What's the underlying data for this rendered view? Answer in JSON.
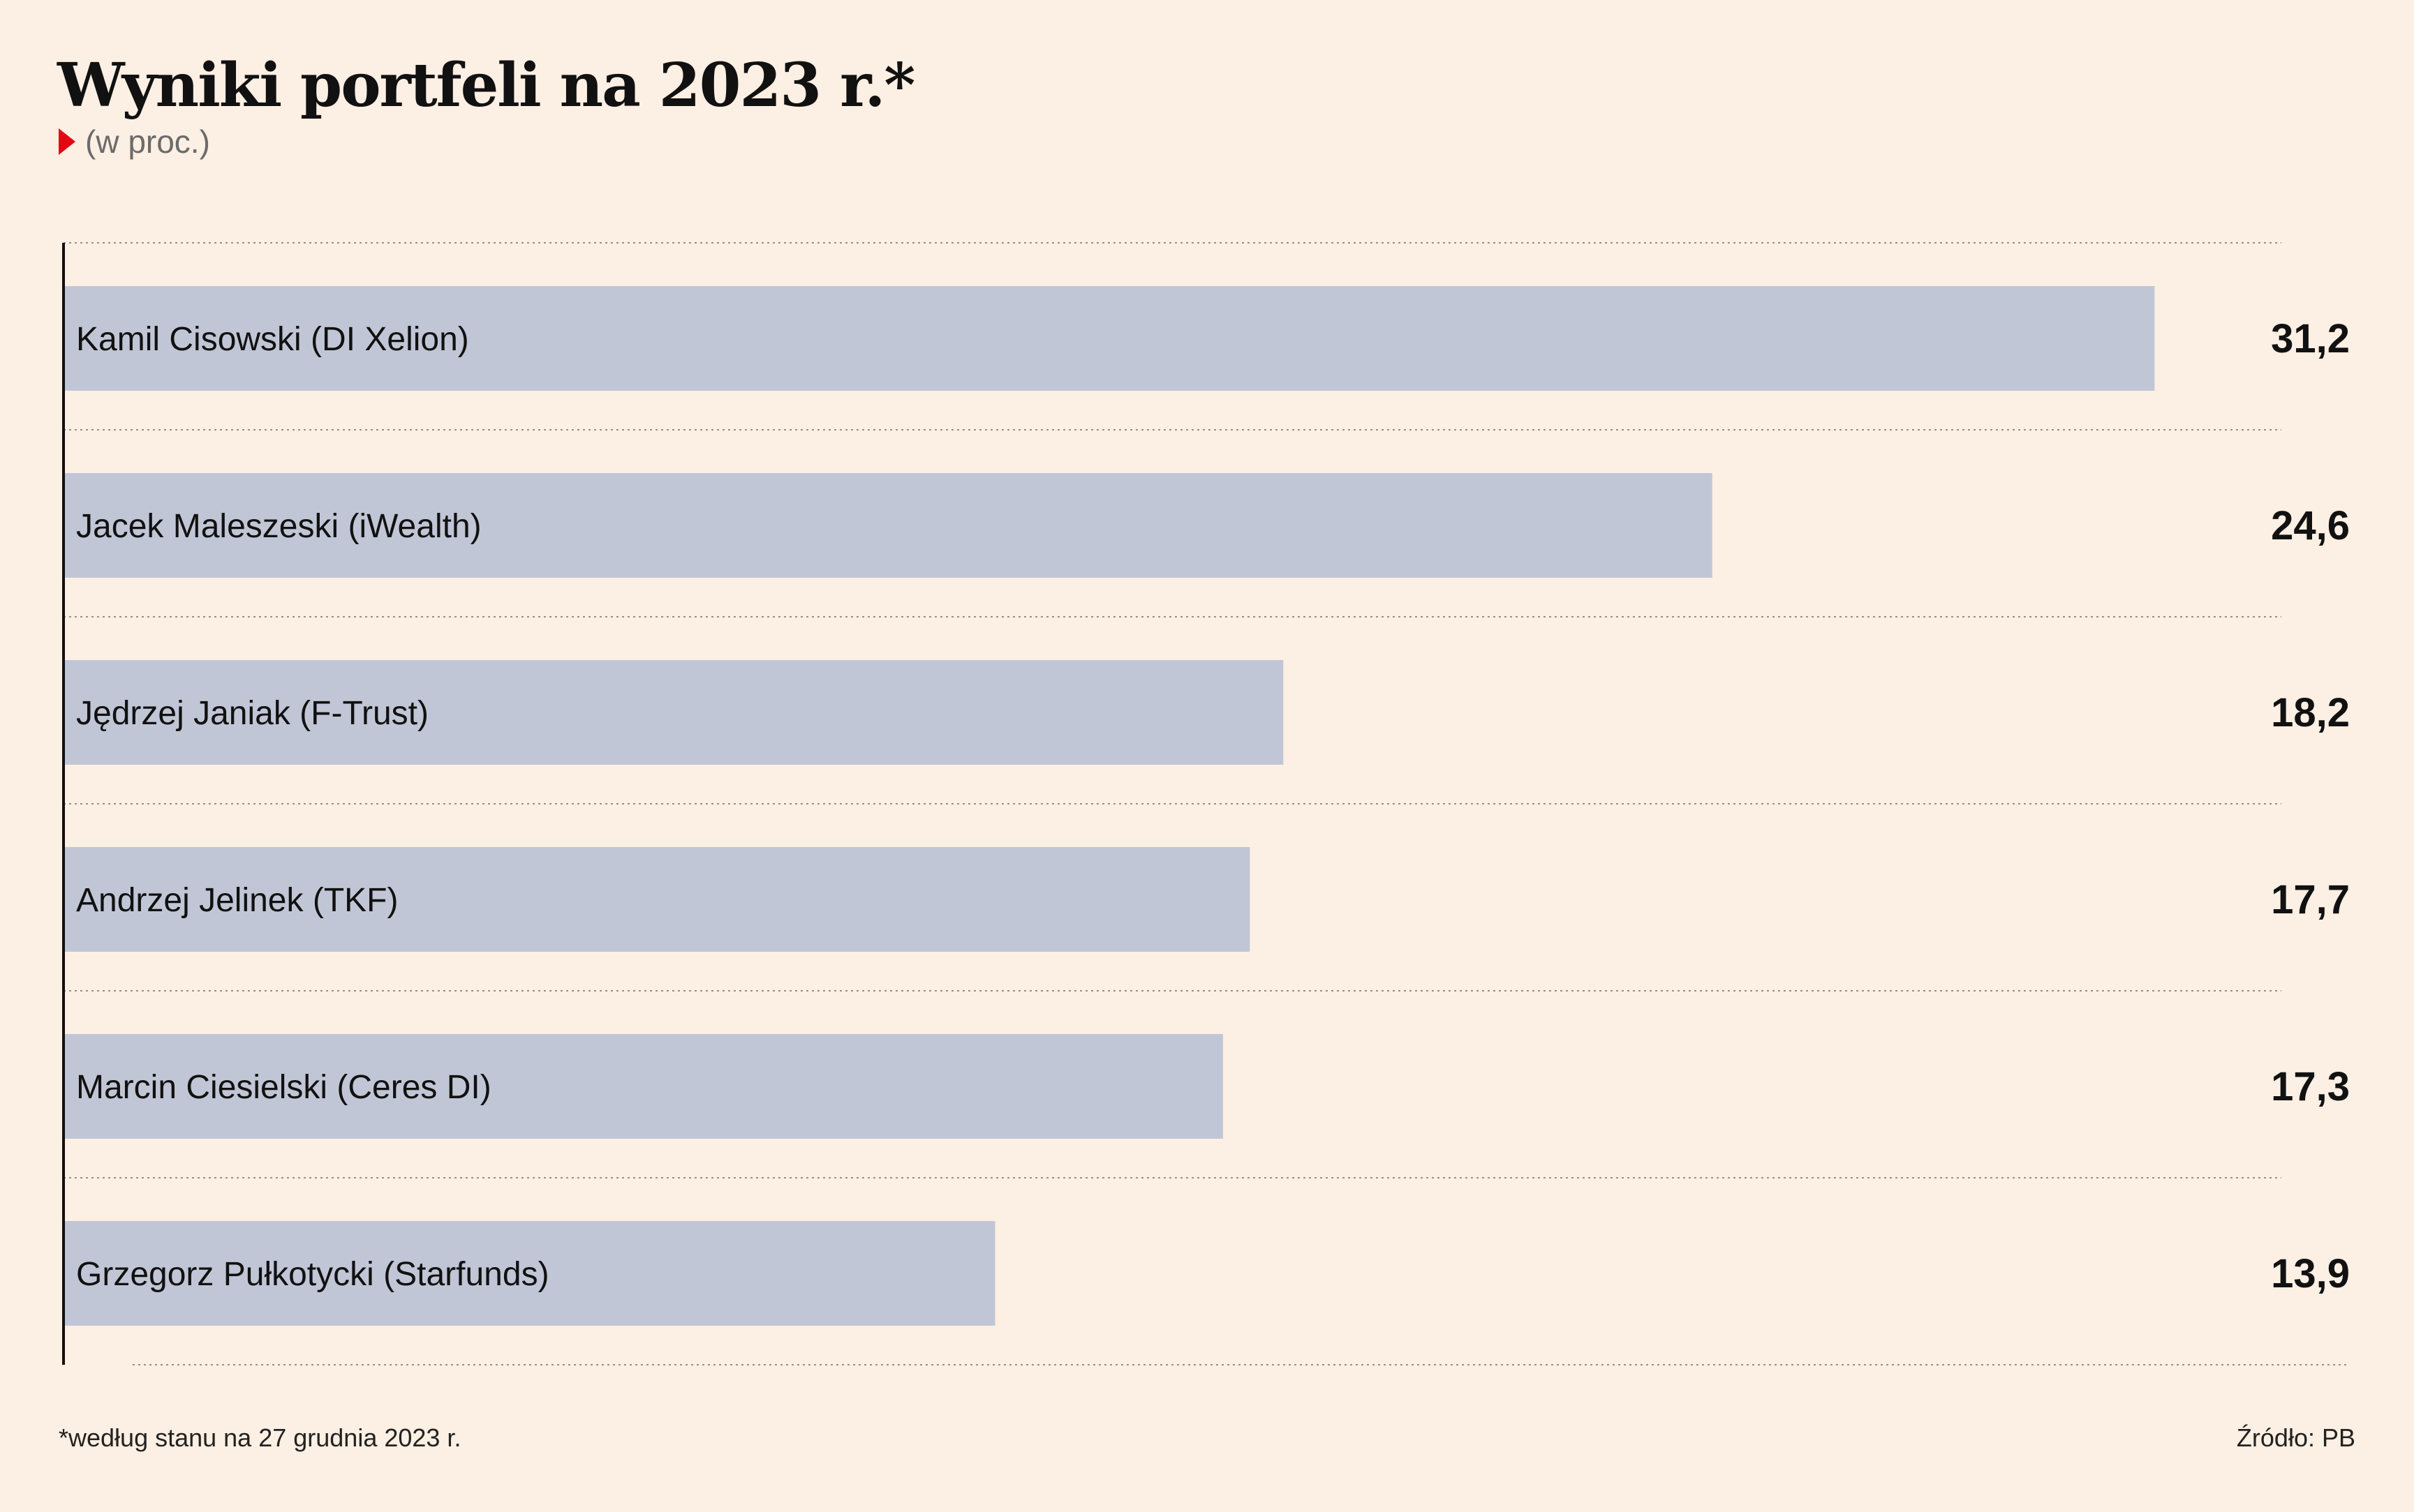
{
  "header": {
    "title": "Wyniki portfeli na 2023 r.*",
    "subtitle": "(w proc.)"
  },
  "colors": {
    "background": "#fcefe3",
    "bar": "#c1c6d6",
    "marker": "#e30613",
    "gridline": "#9a8f85"
  },
  "chart_data": {
    "type": "bar",
    "orientation": "horizontal",
    "categories": [
      "Kamil Cisowski (DI Xelion)",
      "Jacek Maleszeski (iWealth)",
      "Jędrzej Janiak (F-Trust)",
      "Andrzej Jelinek (TKF)",
      "Marcin Ciesielski (Ceres DI)",
      "Grzegorz Pułkotycki (Starfunds)"
    ],
    "values": [
      31.2,
      24.6,
      18.2,
      17.7,
      17.3,
      13.9
    ],
    "value_labels": [
      "31,2",
      "24,6",
      "18,2",
      "17,7",
      "17,3",
      "13,9"
    ],
    "title": "Wyniki portfeli na 2023 r.*",
    "subtitle": "(w proc.)",
    "xlabel": "",
    "ylabel": "",
    "xlim": [
      0,
      32.3
    ],
    "grid": true,
    "legend": "none"
  },
  "footer": {
    "note": "*według stanu na 27 grudnia 2023 r.",
    "source": "Źródło: PB"
  }
}
